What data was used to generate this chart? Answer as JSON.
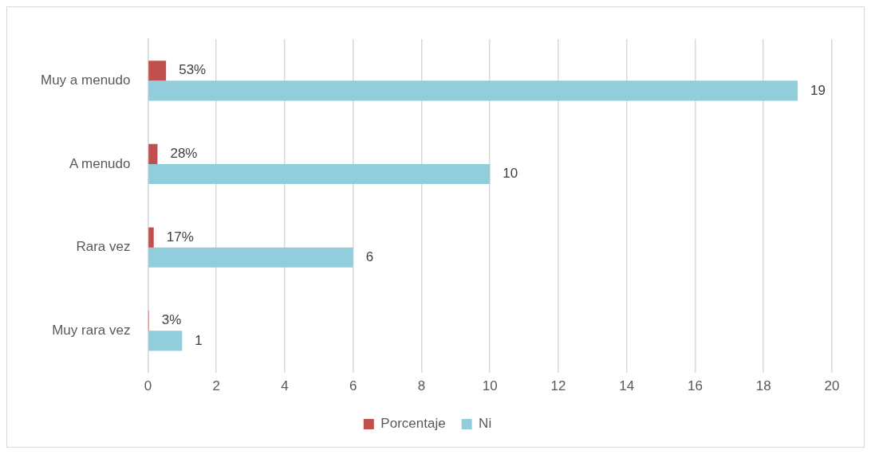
{
  "chart_data": {
    "type": "bar",
    "orientation": "horizontal",
    "categories": [
      "Muy a menudo",
      "A menudo",
      "Rara vez",
      "Muy rara vez"
    ],
    "series": [
      {
        "name": "Porcentaje",
        "color": "#c0504d",
        "values": [
          0.53,
          0.28,
          0.17,
          0.03
        ],
        "value_labels": [
          "53%",
          "28%",
          "17%",
          "3%"
        ]
      },
      {
        "name": "Ni",
        "color": "#92cddc",
        "values": [
          19,
          10,
          6,
          1
        ],
        "value_labels": [
          "19",
          "10",
          "6",
          "1"
        ]
      }
    ],
    "xlim": [
      0,
      20
    ],
    "xticks": [
      0,
      2,
      4,
      6,
      8,
      10,
      12,
      14,
      16,
      18,
      20
    ],
    "grid": "x",
    "legend": "bottom"
  }
}
